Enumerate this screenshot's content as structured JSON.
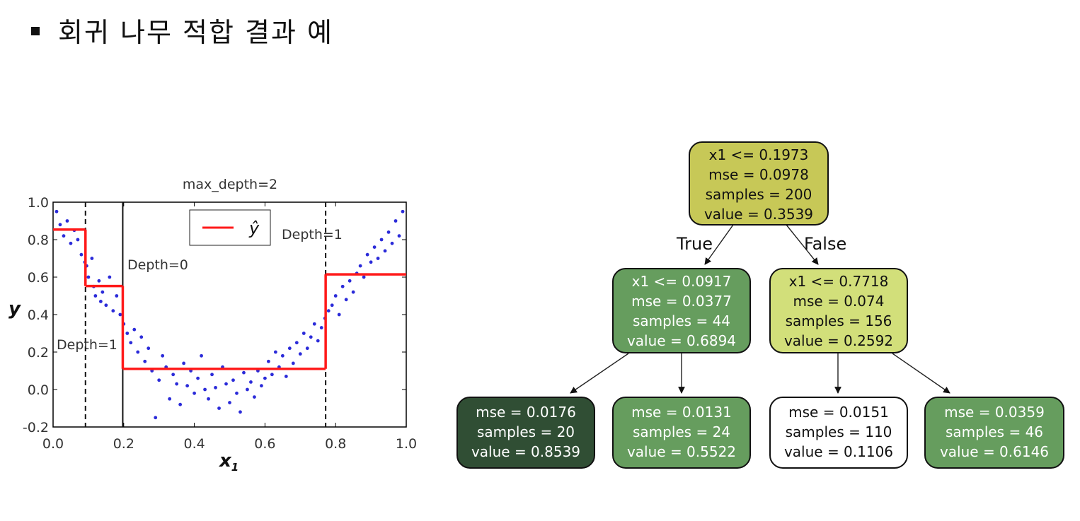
{
  "heading": {
    "bullet": "square-bullet",
    "text": "회귀 나무 적합 결과 예"
  },
  "plot": {
    "title": "max_depth=2",
    "xlabel": "x",
    "xlabel_sub": "1",
    "ylabel": "y",
    "xticks": [
      "0.0",
      "0.2",
      "0.4",
      "0.6",
      "0.8",
      "1.0"
    ],
    "yticks": [
      "1.0",
      "0.8",
      "0.6",
      "0.4",
      "0.2",
      "0.0",
      "-0.2"
    ],
    "legend": "ŷ",
    "annotations": {
      "depth0": "Depth=0",
      "depth1_left": "Depth=1",
      "depth1_right": "Depth=1"
    },
    "colors": {
      "points": "#2b2bd9",
      "prediction": "#ff1a1a"
    }
  },
  "chart_data": {
    "type": "scatter",
    "title": "max_depth=2",
    "xlabel": "x1",
    "ylabel": "y",
    "xlim": [
      0.0,
      1.0
    ],
    "ylim": [
      -0.2,
      1.0
    ],
    "split_lines": [
      {
        "x": 0.0917,
        "style": "dashed",
        "label": "Depth=1"
      },
      {
        "x": 0.1973,
        "style": "solid",
        "label": "Depth=0"
      },
      {
        "x": 0.7718,
        "style": "dashed",
        "label": "Depth=1"
      }
    ],
    "prediction_steps": [
      {
        "x_from": 0.0,
        "x_to": 0.0917,
        "y": 0.8539
      },
      {
        "x_from": 0.0917,
        "x_to": 0.1973,
        "y": 0.5522
      },
      {
        "x_from": 0.1973,
        "x_to": 0.7718,
        "y": 0.1106
      },
      {
        "x_from": 0.7718,
        "x_to": 1.0,
        "y": 0.6146
      }
    ],
    "series": [
      {
        "name": "ŷ",
        "kind": "line",
        "color": "#ff1a1a"
      },
      {
        "kind": "scatter",
        "color": "#2b2bd9",
        "points": [
          [
            0.01,
            0.95
          ],
          [
            0.02,
            0.88
          ],
          [
            0.03,
            0.82
          ],
          [
            0.04,
            0.9
          ],
          [
            0.05,
            0.78
          ],
          [
            0.06,
            0.85
          ],
          [
            0.07,
            0.8
          ],
          [
            0.08,
            0.72
          ],
          [
            0.09,
            0.68
          ],
          [
            0.095,
            0.66
          ],
          [
            0.1,
            0.6
          ],
          [
            0.11,
            0.7
          ],
          [
            0.115,
            0.55
          ],
          [
            0.12,
            0.5
          ],
          [
            0.13,
            0.58
          ],
          [
            0.135,
            0.47
          ],
          [
            0.14,
            0.52
          ],
          [
            0.15,
            0.45
          ],
          [
            0.16,
            0.6
          ],
          [
            0.17,
            0.42
          ],
          [
            0.18,
            0.5
          ],
          [
            0.19,
            0.4
          ],
          [
            0.2,
            0.35
          ],
          [
            0.21,
            0.3
          ],
          [
            0.22,
            0.25
          ],
          [
            0.23,
            0.32
          ],
          [
            0.24,
            0.2
          ],
          [
            0.25,
            0.28
          ],
          [
            0.26,
            0.15
          ],
          [
            0.27,
            0.22
          ],
          [
            0.28,
            0.1
          ],
          [
            0.29,
            -0.15
          ],
          [
            0.3,
            0.05
          ],
          [
            0.31,
            0.18
          ],
          [
            0.32,
            0.12
          ],
          [
            0.33,
            -0.05
          ],
          [
            0.34,
            0.08
          ],
          [
            0.35,
            0.03
          ],
          [
            0.36,
            -0.08
          ],
          [
            0.37,
            0.14
          ],
          [
            0.38,
            0.02
          ],
          [
            0.39,
            0.1
          ],
          [
            0.4,
            -0.02
          ],
          [
            0.41,
            0.06
          ],
          [
            0.42,
            0.18
          ],
          [
            0.43,
            0.0
          ],
          [
            0.44,
            -0.05
          ],
          [
            0.45,
            0.08
          ],
          [
            0.46,
            0.01
          ],
          [
            0.47,
            -0.1
          ],
          [
            0.48,
            0.12
          ],
          [
            0.49,
            0.03
          ],
          [
            0.5,
            -0.07
          ],
          [
            0.51,
            0.05
          ],
          [
            0.52,
            -0.02
          ],
          [
            0.53,
            -0.12
          ],
          [
            0.54,
            0.09
          ],
          [
            0.55,
            0.0
          ],
          [
            0.56,
            0.04
          ],
          [
            0.57,
            -0.04
          ],
          [
            0.58,
            0.1
          ],
          [
            0.59,
            0.02
          ],
          [
            0.6,
            0.06
          ],
          [
            0.61,
            0.15
          ],
          [
            0.62,
            0.08
          ],
          [
            0.63,
            0.2
          ],
          [
            0.64,
            0.12
          ],
          [
            0.65,
            0.18
          ],
          [
            0.66,
            0.07
          ],
          [
            0.67,
            0.22
          ],
          [
            0.68,
            0.14
          ],
          [
            0.69,
            0.25
          ],
          [
            0.7,
            0.19
          ],
          [
            0.71,
            0.3
          ],
          [
            0.72,
            0.22
          ],
          [
            0.73,
            0.28
          ],
          [
            0.74,
            0.35
          ],
          [
            0.75,
            0.26
          ],
          [
            0.76,
            0.33
          ],
          [
            0.77,
            0.38
          ],
          [
            0.78,
            0.42
          ],
          [
            0.79,
            0.45
          ],
          [
            0.8,
            0.5
          ],
          [
            0.81,
            0.4
          ],
          [
            0.82,
            0.55
          ],
          [
            0.83,
            0.48
          ],
          [
            0.84,
            0.58
          ],
          [
            0.85,
            0.52
          ],
          [
            0.86,
            0.62
          ],
          [
            0.87,
            0.66
          ],
          [
            0.88,
            0.6
          ],
          [
            0.89,
            0.72
          ],
          [
            0.9,
            0.68
          ],
          [
            0.91,
            0.76
          ],
          [
            0.92,
            0.7
          ],
          [
            0.93,
            0.8
          ],
          [
            0.94,
            0.74
          ],
          [
            0.95,
            0.84
          ],
          [
            0.96,
            0.78
          ],
          [
            0.97,
            0.9
          ],
          [
            0.98,
            0.82
          ],
          [
            0.99,
            0.95
          ]
        ]
      }
    ]
  },
  "tree": {
    "edge_labels": {
      "true": "True",
      "false": "False"
    },
    "nodes": {
      "root": {
        "lines": [
          "x1 <= 0.1973",
          "mse = 0.0978",
          "samples = 200",
          "value = 0.3539"
        ],
        "fill": "#c7c857",
        "text_color": "#111111"
      },
      "left": {
        "lines": [
          "x1 <= 0.0917",
          "mse = 0.0377",
          "samples = 44",
          "value = 0.6894"
        ],
        "fill": "#669d5e",
        "text_color": "#ffffff"
      },
      "right": {
        "lines": [
          "x1 <= 0.7718",
          "mse = 0.074",
          "samples = 156",
          "value = 0.2592"
        ],
        "fill": "#d2df7a",
        "text_color": "#111111"
      },
      "ll": {
        "lines": [
          "mse = 0.0176",
          "samples = 20",
          "value = 0.8539"
        ],
        "fill": "#304e34",
        "text_color": "#ffffff"
      },
      "lr": {
        "lines": [
          "mse = 0.0131",
          "samples = 24",
          "value = 0.5522"
        ],
        "fill": "#669d5e",
        "text_color": "#ffffff"
      },
      "rl": {
        "lines": [
          "mse = 0.0151",
          "samples = 110",
          "value = 0.1106"
        ],
        "fill": "#ffffff",
        "text_color": "#111111"
      },
      "rr": {
        "lines": [
          "mse = 0.0359",
          "samples = 46",
          "value = 0.6146"
        ],
        "fill": "#669d5e",
        "text_color": "#ffffff"
      }
    }
  }
}
